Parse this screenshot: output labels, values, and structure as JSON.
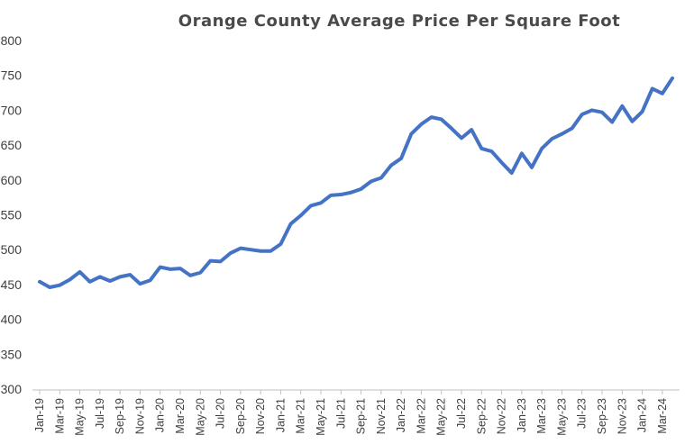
{
  "chart_data": {
    "type": "line",
    "title": "Orange County Average Price Per Square Foot",
    "xlabel": "",
    "ylabel": "",
    "ylim": [
      300,
      800
    ],
    "yticks": [
      300,
      350,
      400,
      450,
      500,
      550,
      600,
      650,
      700,
      750,
      800
    ],
    "grid": false,
    "legend": "none",
    "series_color": "#4472C4",
    "x": [
      "Jan-19",
      "Feb-19",
      "Mar-19",
      "Apr-19",
      "May-19",
      "Jun-19",
      "Jul-19",
      "Aug-19",
      "Sep-19",
      "Oct-19",
      "Nov-19",
      "Dec-19",
      "Jan-20",
      "Feb-20",
      "Mar-20",
      "Apr-20",
      "May-20",
      "Jun-20",
      "Jul-20",
      "Aug-20",
      "Sep-20",
      "Oct-20",
      "Nov-20",
      "Dec-20",
      "Jan-21",
      "Feb-21",
      "Mar-21",
      "Apr-21",
      "May-21",
      "Jun-21",
      "Jul-21",
      "Aug-21",
      "Sep-21",
      "Oct-21",
      "Nov-21",
      "Dec-21",
      "Jan-22",
      "Feb-22",
      "Mar-22",
      "Apr-22",
      "May-22",
      "Jun-22",
      "Jul-22",
      "Aug-22",
      "Sep-22",
      "Oct-22",
      "Nov-22",
      "Dec-22",
      "Jan-23",
      "Feb-23",
      "Mar-23",
      "Apr-23",
      "May-23",
      "Jun-23",
      "Jul-23",
      "Aug-23",
      "Sep-23",
      "Oct-23",
      "Nov-23",
      "Dec-23",
      "Jan-24",
      "Feb-24",
      "Mar-24",
      "Apr-24"
    ],
    "x_tick_labels": [
      "Jan-19",
      "Mar-19",
      "May-19",
      "Jul-19",
      "Sep-19",
      "Nov-19",
      "Jan-20",
      "Mar-20",
      "May-20",
      "Jul-20",
      "Sep-20",
      "Nov-20",
      "Jan-21",
      "Mar-21",
      "May-21",
      "Jul-21",
      "Sep-21",
      "Nov-21",
      "Jan-22",
      "Mar-22",
      "May-22",
      "Jul-22",
      "Sep-22",
      "Nov-22",
      "Jan-23",
      "Mar-23",
      "May-23",
      "Jul-23",
      "Sep-23",
      "Nov-23",
      "Jan-24",
      "Mar-24"
    ],
    "series": [
      {
        "name": "Average Price Per Square Foot",
        "values": [
          454,
          446,
          449,
          457,
          468,
          454,
          461,
          455,
          461,
          464,
          451,
          456,
          475,
          472,
          473,
          463,
          467,
          484,
          483,
          495,
          502,
          500,
          498,
          498,
          508,
          537,
          549,
          563,
          567,
          578,
          579,
          582,
          587,
          598,
          603,
          621,
          631,
          666,
          680,
          690,
          687,
          674,
          660,
          672,
          645,
          641,
          625,
          610,
          638,
          618,
          645,
          659,
          666,
          674,
          694,
          700,
          697,
          683,
          706,
          684,
          698,
          731,
          724,
          746
        ]
      }
    ]
  }
}
